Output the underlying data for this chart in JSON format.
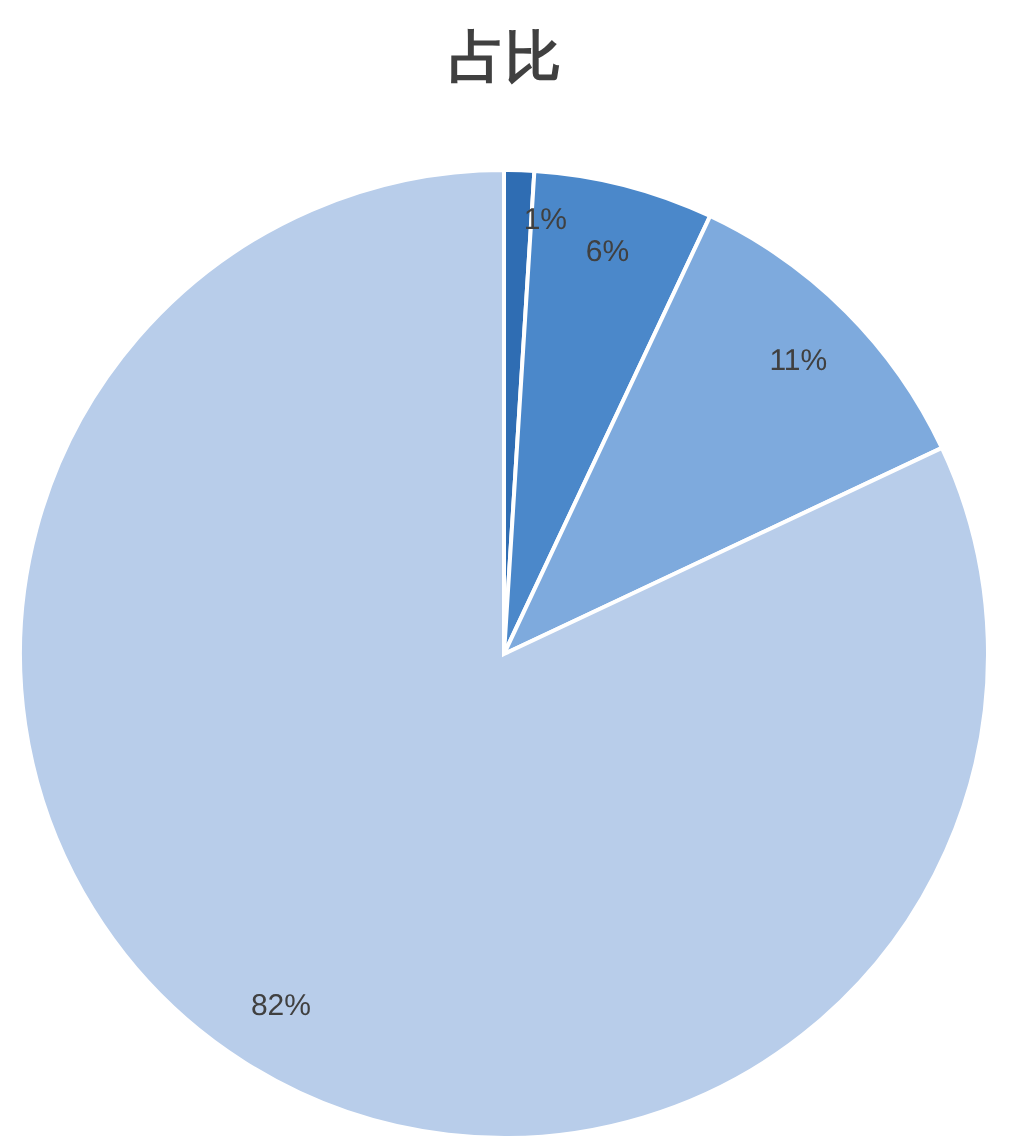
{
  "chart_data": {
    "type": "pie",
    "title": "占比",
    "categories": [
      null,
      null,
      null,
      null
    ],
    "values": [
      1,
      6,
      11,
      82
    ],
    "colors": [
      "#2f6db3",
      "#4b88ca",
      "#7eaadd",
      "#b8cdea"
    ],
    "value_labels": [
      "1%",
      "6%",
      "11%",
      "82%"
    ]
  }
}
